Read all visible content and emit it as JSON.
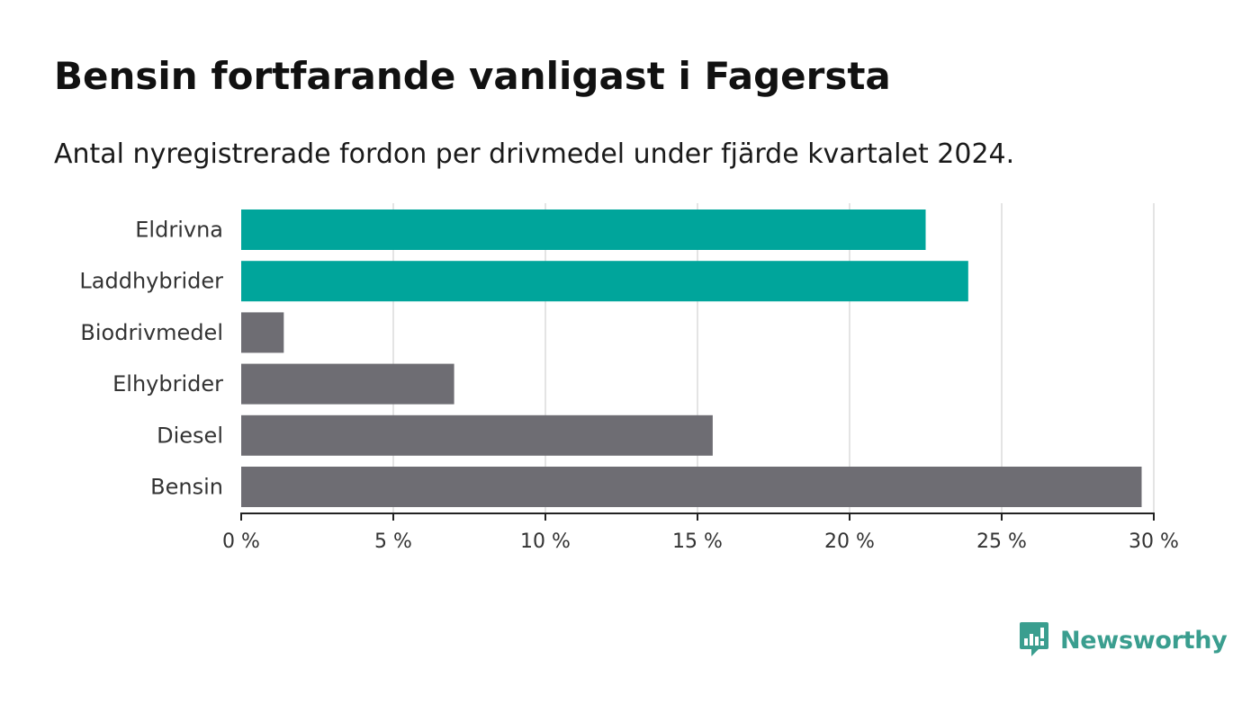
{
  "header": {
    "title": "Bensin fortfarande vanligast i Fagersta",
    "subtitle": "Antal nyregistrerade fordon per drivmedel under fjärde kvartalet 2024."
  },
  "chart_data": {
    "type": "bar",
    "orientation": "horizontal",
    "categories": [
      "Eldrivna",
      "Laddhybrider",
      "Biodrivmedel",
      "Elhybrider",
      "Diesel",
      "Bensin"
    ],
    "values": [
      22.5,
      23.9,
      1.4,
      7.0,
      15.5,
      29.6
    ],
    "unit": "%",
    "xlim": [
      0,
      30
    ],
    "xticks": [
      0,
      5,
      10,
      15,
      20,
      25,
      30
    ],
    "xtick_labels": [
      "0 %",
      "5 %",
      "10 %",
      "15 %",
      "20 %",
      "25 %",
      "30 %"
    ],
    "grid": true,
    "colors": {
      "Eldrivna": "#00a59b",
      "Laddhybrider": "#00a59b",
      "Biodrivmedel": "#6e6d73",
      "Elhybrider": "#6e6d73",
      "Diesel": "#6e6d73",
      "Bensin": "#6e6d73"
    },
    "gridline_color": "#dcdcdc",
    "axis_color": "#222222"
  },
  "branding": {
    "name": "Newsworthy",
    "icon": "newsworthy-logo-icon",
    "color": "#3a9e8f"
  }
}
